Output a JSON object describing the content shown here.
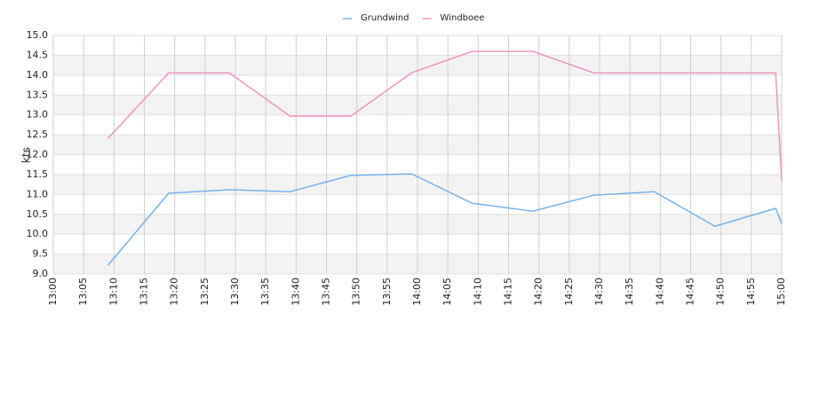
{
  "chart_data": {
    "type": "line",
    "y_label": "kts",
    "x": [
      "13:09",
      "13:19",
      "13:29",
      "13:39",
      "13:49",
      "13:59",
      "14:09",
      "14:19",
      "14:29",
      "14:39",
      "14:49",
      "14:59",
      "15:00"
    ],
    "series": [
      {
        "name": "Grundwind",
        "color": "#6aaeea",
        "values": [
          9.22,
          11.03,
          11.12,
          11.07,
          11.48,
          11.52,
          10.78,
          10.58,
          10.98,
          11.07,
          10.2,
          10.65,
          10.27
        ]
      },
      {
        "name": "Windboee",
        "color": "#f08cbb",
        "values": [
          12.41,
          14.06,
          14.06,
          12.97,
          12.97,
          14.06,
          14.6,
          14.6,
          14.06,
          14.06,
          14.06,
          14.06,
          11.34
        ]
      }
    ],
    "xlim": [
      "13:00",
      "15:00"
    ],
    "xticks": [
      "13:00",
      "13:05",
      "13:10",
      "13:15",
      "13:20",
      "13:25",
      "13:30",
      "13:35",
      "13:40",
      "13:45",
      "13:50",
      "13:55",
      "14:00",
      "14:05",
      "14:10",
      "14:15",
      "14:20",
      "14:25",
      "14:30",
      "14:35",
      "14:40",
      "14:45",
      "14:50",
      "14:55",
      "15:00"
    ],
    "ylim": [
      9,
      15
    ],
    "yticks": [
      {
        "value": 9,
        "label": "9.0"
      },
      9.5,
      {
        "value": 10,
        "label": "10.0"
      },
      10.5,
      {
        "value": 11,
        "label": "11.0"
      },
      11.5,
      {
        "value": 12,
        "label": "12.0"
      },
      12.5,
      {
        "value": 13,
        "label": "13.0"
      },
      13.5,
      {
        "value": 14,
        "label": "14.0"
      },
      14.5,
      {
        "value": 15,
        "label": "15.0"
      }
    ],
    "grid": true,
    "legend": "top"
  }
}
